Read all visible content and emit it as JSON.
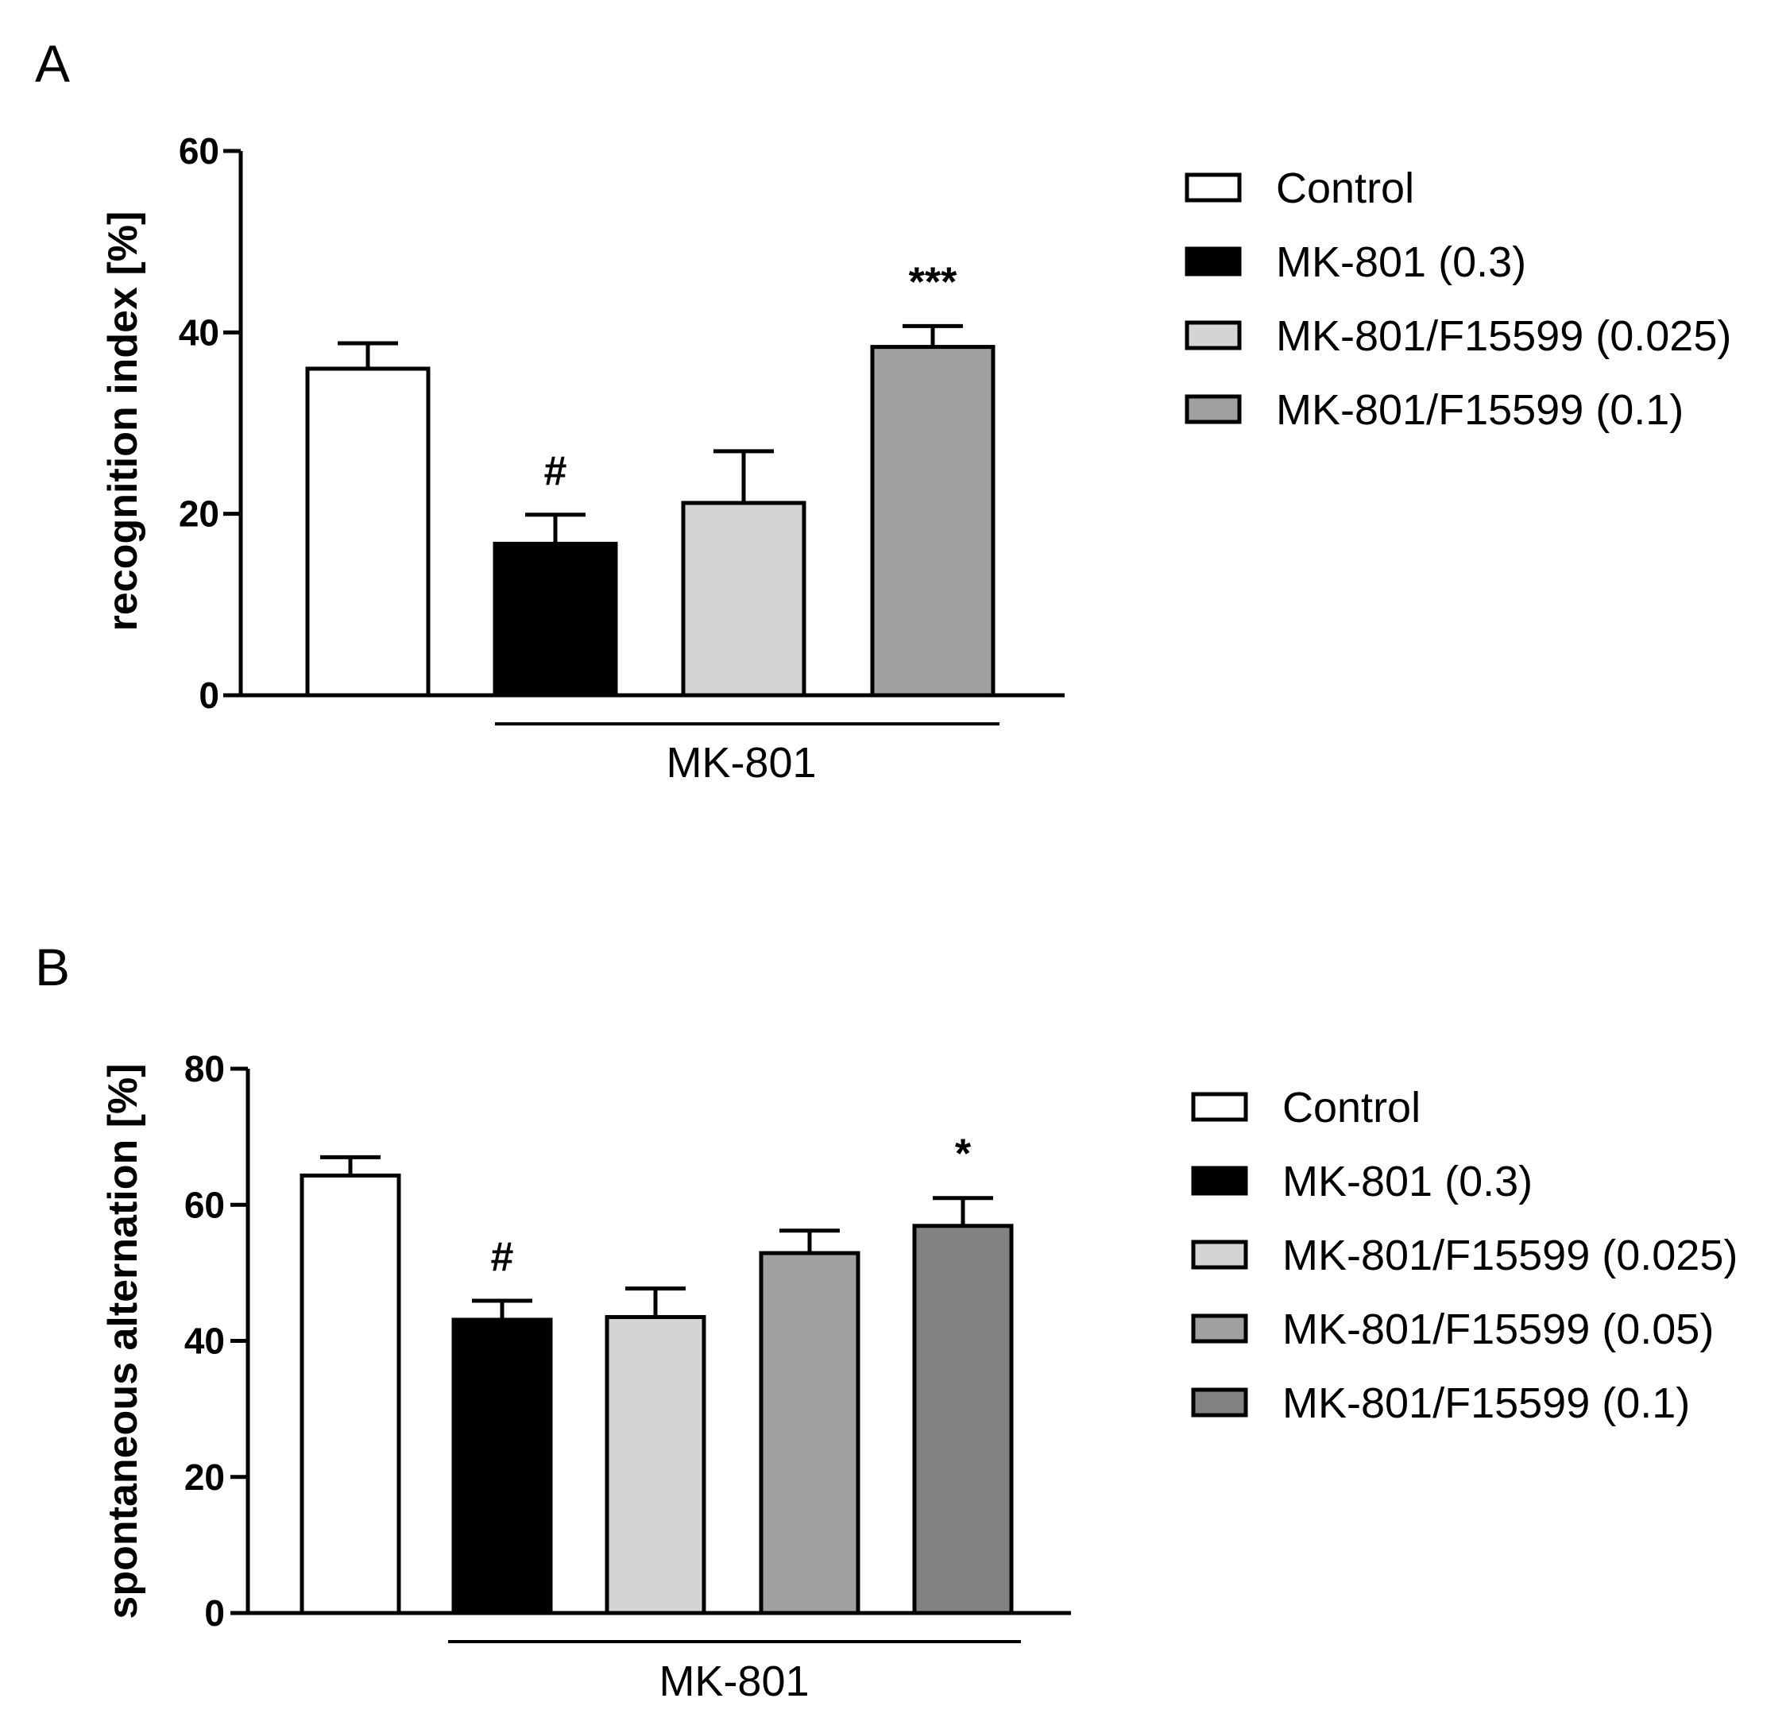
{
  "chart_data": [
    {
      "panel": "A",
      "type": "bar",
      "title": "",
      "xlabel": "",
      "ylabel": "recognition index [%]",
      "ylim": [
        0,
        60
      ],
      "yticks": [
        0,
        20,
        40,
        60
      ],
      "grid": false,
      "legend_position": "right",
      "group_label": "MK-801",
      "categories": [
        "Control",
        "MK-801 (0.3)",
        "MK-801/F15599 (0.025)",
        "MK-801/F15599 (0.1)"
      ],
      "values": [
        36,
        16.7,
        21.2,
        38.4
      ],
      "errors": [
        2.8,
        3.2,
        5.7,
        2.3
      ],
      "colors": [
        "#ffffff",
        "#000000",
        "#d4d4d4",
        "#a0a0a3"
      ],
      "annotations": [
        "",
        "#",
        "",
        "***"
      ]
    },
    {
      "panel": "B",
      "type": "bar",
      "title": "",
      "xlabel": "",
      "ylabel": "spontaneous alternation [%]",
      "ylim": [
        0,
        80
      ],
      "yticks": [
        0,
        20,
        40,
        60,
        80
      ],
      "grid": false,
      "legend_position": "right",
      "group_label": "MK-801",
      "categories": [
        "Control",
        "MK-801 (0.3)",
        "MK-801/F15599 (0.025)",
        "MK-801/F15599 (0.05)",
        "MK-801/F15599 (0.1)"
      ],
      "values": [
        64.3,
        43.1,
        43.5,
        52.9,
        56.9
      ],
      "errors": [
        2.7,
        2.8,
        4.2,
        3.3,
        4.1
      ],
      "colors": [
        "#ffffff",
        "#000000",
        "#d4d4d4",
        "#a0a0a3",
        "#828282"
      ],
      "annotations": [
        "",
        "#",
        "",
        "",
        "*"
      ]
    }
  ]
}
